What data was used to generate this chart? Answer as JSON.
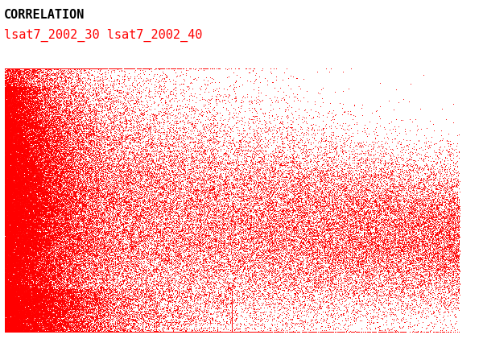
{
  "title": "CORRELATION",
  "subtitle": "lsat7_2002_30 lsat7_2002_40",
  "title_color": "black",
  "subtitle_color": "red",
  "dot_color": "#ff0000",
  "background_color": "white",
  "fig_width": 6.0,
  "fig_height": 4.21,
  "dpi": 100,
  "n_points": 120000,
  "title_fontsize": 11,
  "subtitle_fontsize": 11,
  "marker_size": 0.5
}
